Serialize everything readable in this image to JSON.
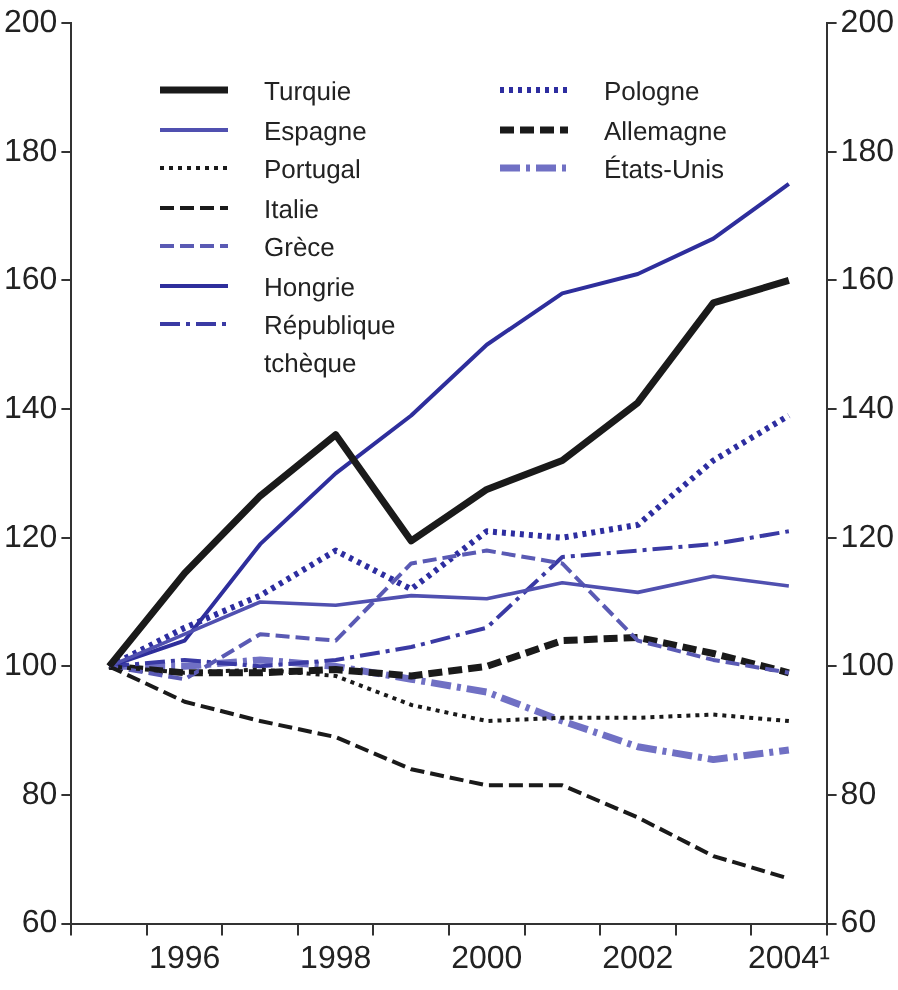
{
  "chart_data": {
    "type": "line",
    "categories": [
      null,
      "1996",
      null,
      "1998",
      null,
      "2000",
      null,
      "2002",
      null,
      "2004¹"
    ],
    "series": [
      {
        "name": "Turquie",
        "color": "#1a1a1a",
        "line_style": "solid",
        "values": [
          100,
          114.5,
          126.5,
          136,
          119.5,
          127.5,
          132,
          141,
          156.5,
          160
        ]
      },
      {
        "name": "Espagne",
        "color": "#5050b0",
        "line_style": "solid",
        "values": [
          100,
          105,
          110,
          109.5,
          111,
          110.5,
          113,
          111.5,
          114,
          112.5
        ]
      },
      {
        "name": "Portugal",
        "color": "#1a1a1a",
        "line_style": "dotted",
        "values": [
          100,
          99,
          99.5,
          98.5,
          94,
          91.5,
          92,
          92,
          92.5,
          91.5
        ]
      },
      {
        "name": "Italie",
        "color": "#1a1a1a",
        "line_style": "dashed",
        "values": [
          100,
          94.5,
          91.5,
          89,
          84,
          81.5,
          81.5,
          76.5,
          70.5,
          67
        ]
      },
      {
        "name": "Grèce",
        "color": "#5a5ab4",
        "line_style": "dashed",
        "values": [
          100,
          98,
          105,
          104,
          116,
          118,
          116,
          104,
          101,
          99
        ]
      },
      {
        "name": "Hongrie",
        "color": "#2e2e9c",
        "line_style": "solid",
        "values": [
          100,
          104,
          119,
          130,
          139,
          150,
          158,
          161,
          166.5,
          175
        ]
      },
      {
        "name": "République tchèque",
        "color": "#3a3aa4",
        "line_style": "dashdot",
        "values": [
          100,
          101,
          100,
          101,
          103,
          106,
          117,
          118,
          119,
          121
        ]
      },
      {
        "name": "Pologne",
        "color": "#2d2da0",
        "line_style": "dotted",
        "values": [
          100,
          106,
          111,
          118,
          112,
          121,
          120,
          122,
          132,
          139
        ]
      },
      {
        "name": "Allemagne",
        "color": "#1a1a1a",
        "line_style": "dashed",
        "values": [
          100,
          99,
          99,
          99.5,
          98.5,
          100,
          104,
          104.5,
          102,
          99
        ]
      },
      {
        "name": "États-Unis",
        "color": "#7070c4",
        "line_style": "dashdot",
        "values": [
          100,
          100,
          101,
          100,
          98,
          96,
          91.5,
          87.5,
          85.5,
          87
        ]
      }
    ],
    "ylim": [
      60,
      200
    ],
    "yticks": [
      60,
      80,
      100,
      120,
      140,
      160,
      180,
      200
    ],
    "y2lim": [
      60,
      200
    ],
    "y2ticks": [
      60,
      80,
      100,
      120,
      140,
      160,
      180,
      200
    ],
    "grid": false,
    "legend": "top left",
    "marker": "none"
  }
}
